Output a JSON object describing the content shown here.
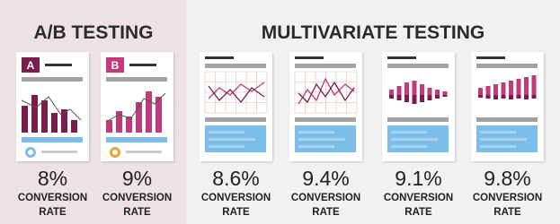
{
  "sections": [
    {
      "title": "A/B TESTING",
      "variants": [
        {
          "badge": "A",
          "rate": "8%",
          "caption": [
            "CONVERSION",
            "RATE"
          ]
        },
        {
          "badge": "B",
          "rate": "9%",
          "caption": [
            "CONVERSION",
            "RATE"
          ]
        }
      ]
    },
    {
      "title": "MULTIVARIATE TESTING",
      "variants": [
        {
          "rate": "8.6%",
          "caption": [
            "CONVERSION",
            "RATE"
          ]
        },
        {
          "rate": "9.4%",
          "caption": [
            "CONVERSION",
            "RATE"
          ]
        },
        {
          "rate": "9.1%",
          "caption": [
            "CONVERSION",
            "RATE"
          ]
        },
        {
          "rate": "9.8%",
          "caption": [
            "CONVERSION",
            "RATE"
          ]
        }
      ]
    }
  ]
}
